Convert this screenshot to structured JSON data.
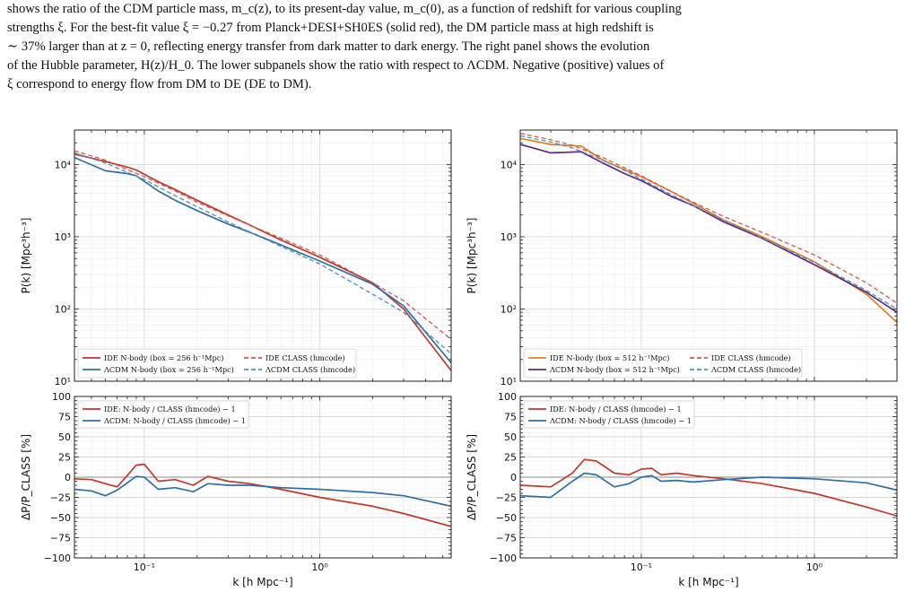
{
  "caption": {
    "line1": "shows the ratio of the CDM particle mass, m_c(z), to its present-day value, m_c(0), as a function of redshift for various coupling",
    "line2": "strengths ξ. For the best-fit value ξ = −0.27 from Planck+DESI+SH0ES (solid red), the DM particle mass at high redshift is",
    "line3": "∼ 37% larger than at z = 0, reflecting energy transfer from dark matter to dark energy. The right panel shows the evolution",
    "line4": "of the Hubble parameter, H(z)/H_0. The lower subpanels show the ratio with respect to ΛCDM. Negative (positive) values of",
    "line5": "ξ correspond to energy flow from DM to DE (DE to DM)."
  },
  "colors": {
    "ide": "#c0392b",
    "lcdm": "#2e6fa6",
    "ide_right": "#e67e22",
    "lcdm_right": "#5b2a86",
    "grid": "#dddddd"
  },
  "chart_data": [
    {
      "type": "line",
      "panel": "top-left",
      "xscale": "log",
      "yscale": "log",
      "xlim": [
        0.04,
        5.6
      ],
      "ylim": [
        10,
        30000
      ],
      "ylabel": "P(k) [Mpc³h⁻³]",
      "yticks": [
        {
          "v": 10,
          "label": "10¹"
        },
        {
          "v": 100,
          "label": "10²"
        },
        {
          "v": 1000,
          "label": "10³"
        },
        {
          "v": 10000,
          "label": "10⁴"
        }
      ],
      "legend_position": "lower-left",
      "series": [
        {
          "name": "IDE N-body (box = 256 h⁻¹Mpc)",
          "color": "#c0392b",
          "dash": "none",
          "x": [
            0.04,
            0.06,
            0.08,
            0.09,
            0.12,
            0.15,
            0.2,
            0.3,
            0.4,
            0.6,
            1,
            2,
            3,
            5.6
          ],
          "y": [
            14000,
            11000,
            9200,
            8400,
            5800,
            4500,
            3200,
            2000,
            1450,
            900,
            520,
            230,
            100,
            14
          ]
        },
        {
          "name": "ΛCDM N-body (box = 256 h⁻¹Mpc)",
          "color": "#2e6fa6",
          "dash": "none",
          "x": [
            0.04,
            0.06,
            0.08,
            0.09,
            0.12,
            0.15,
            0.2,
            0.3,
            0.4,
            0.6,
            1,
            2,
            3,
            5.6
          ],
          "y": [
            12500,
            8200,
            7500,
            7000,
            4300,
            3200,
            2300,
            1500,
            1150,
            770,
            460,
            220,
            110,
            18
          ]
        },
        {
          "name": "IDE CLASS (hmcode)",
          "color": "#d35a4a",
          "dash": "5,3",
          "x": [
            0.04,
            0.06,
            0.08,
            0.1,
            0.15,
            0.2,
            0.3,
            0.5,
            1,
            2,
            3,
            5.6
          ],
          "y": [
            15500,
            11500,
            8500,
            6800,
            4300,
            3000,
            1950,
            1150,
            560,
            230,
            130,
            38
          ]
        },
        {
          "name": "ΛCDM CLASS (hmcode)",
          "color": "#4f8fc0",
          "dash": "5,3",
          "x": [
            0.04,
            0.06,
            0.08,
            0.1,
            0.15,
            0.2,
            0.3,
            0.5,
            1,
            2,
            3,
            5.6
          ],
          "y": [
            14500,
            10500,
            7800,
            6200,
            3700,
            2600,
            1600,
            900,
            420,
            160,
            90,
            24
          ]
        }
      ]
    },
    {
      "type": "line",
      "panel": "bottom-left",
      "xscale": "log",
      "xlim": [
        0.04,
        5.6
      ],
      "ylim": [
        -100,
        100
      ],
      "xlabel": "k [h Mpc⁻¹]",
      "ylabel": "ΔP/P_CLASS [%]",
      "xticks": [
        {
          "v": 0.1,
          "label": "10⁻¹"
        },
        {
          "v": 1,
          "label": "10⁰"
        }
      ],
      "yticks": [
        {
          "v": -100,
          "label": "−100"
        },
        {
          "v": -75,
          "label": "−75"
        },
        {
          "v": -50,
          "label": "−50"
        },
        {
          "v": -25,
          "label": "−25"
        },
        {
          "v": 0,
          "label": "0"
        },
        {
          "v": 25,
          "label": "25"
        },
        {
          "v": 50,
          "label": "50"
        },
        {
          "v": 75,
          "label": "75"
        },
        {
          "v": 100,
          "label": "100"
        }
      ],
      "legend_position": "upper-left",
      "series": [
        {
          "name": "IDE: N-body / CLASS (hmcode) − 1",
          "color": "#c0392b",
          "x": [
            0.04,
            0.05,
            0.06,
            0.07,
            0.08,
            0.09,
            0.1,
            0.12,
            0.15,
            0.19,
            0.23,
            0.3,
            0.4,
            0.6,
            1,
            2,
            3,
            5.6
          ],
          "y": [
            -2,
            -3,
            -8,
            -12,
            2,
            15,
            16,
            -5,
            -3,
            -10,
            1,
            -5,
            -8,
            -15,
            -25,
            -36,
            -45,
            -61
          ]
        },
        {
          "name": "ΛCDM: N-body / CLASS (hmcode) − 1",
          "color": "#2e6fa6",
          "x": [
            0.04,
            0.05,
            0.06,
            0.07,
            0.08,
            0.09,
            0.1,
            0.12,
            0.15,
            0.19,
            0.23,
            0.3,
            0.4,
            0.6,
            1,
            2,
            3,
            5.6
          ],
          "y": [
            -15,
            -17,
            -23,
            -16,
            -7,
            1,
            0,
            -15,
            -13,
            -18,
            -8,
            -10,
            -10,
            -13,
            -15,
            -19,
            -23,
            -36
          ]
        }
      ]
    },
    {
      "type": "line",
      "panel": "top-right",
      "xscale": "log",
      "yscale": "log",
      "xlim": [
        0.02,
        3.0
      ],
      "ylim": [
        10,
        30000
      ],
      "ylabel": "P(k) [Mpc³h⁻³]",
      "yticks": [
        {
          "v": 10,
          "label": "10¹"
        },
        {
          "v": 100,
          "label": "10²"
        },
        {
          "v": 1000,
          "label": "10³"
        },
        {
          "v": 10000,
          "label": "10⁴"
        }
      ],
      "legend_position": "lower-left",
      "series": [
        {
          "name": "IDE N-body (box = 512 h⁻¹Mpc)",
          "color": "#e67e22",
          "dash": "none",
          "x": [
            0.02,
            0.03,
            0.045,
            0.06,
            0.08,
            0.1,
            0.15,
            0.2,
            0.3,
            0.5,
            1,
            2,
            3
          ],
          "y": [
            23000,
            19000,
            18000,
            11500,
            8500,
            6800,
            4200,
            2900,
            1700,
            1000,
            450,
            160,
            65
          ]
        },
        {
          "name": "ΛCDM N-body (box = 512 h⁻¹Mpc)",
          "color": "#5b2a86",
          "dash": "none",
          "x": [
            0.02,
            0.03,
            0.045,
            0.06,
            0.08,
            0.1,
            0.15,
            0.2,
            0.3,
            0.5,
            1,
            2,
            3
          ],
          "y": [
            19000,
            14500,
            15000,
            10500,
            7500,
            6000,
            3600,
            2700,
            1600,
            950,
            410,
            170,
            90
          ]
        },
        {
          "name": "IDE CLASS (hmcode)",
          "color": "#d35a4a",
          "dash": "5,3",
          "x": [
            0.02,
            0.03,
            0.04,
            0.06,
            0.08,
            0.1,
            0.15,
            0.2,
            0.3,
            0.5,
            1,
            2,
            3
          ],
          "y": [
            27000,
            22000,
            18500,
            12500,
            9000,
            7000,
            4200,
            3000,
            1900,
            1150,
            560,
            230,
            120
          ]
        },
        {
          "name": "ΛCDM CLASS (hmcode)",
          "color": "#4f8fc0",
          "dash": "5,3",
          "x": [
            0.02,
            0.03,
            0.04,
            0.06,
            0.08,
            0.1,
            0.15,
            0.2,
            0.3,
            0.5,
            1,
            2,
            3
          ],
          "y": [
            25000,
            20500,
            17000,
            11500,
            8300,
            6300,
            3800,
            2700,
            1700,
            960,
            440,
            180,
            100
          ]
        }
      ]
    },
    {
      "type": "line",
      "panel": "bottom-right",
      "xscale": "log",
      "xlim": [
        0.02,
        3.0
      ],
      "ylim": [
        -100,
        100
      ],
      "xlabel": "k [h Mpc⁻¹]",
      "ylabel": "ΔP/P_CLASS [%]",
      "xticks": [
        {
          "v": 0.1,
          "label": "10⁻¹"
        },
        {
          "v": 1,
          "label": "10⁰"
        }
      ],
      "yticks": [
        {
          "v": -100,
          "label": "−100"
        },
        {
          "v": -75,
          "label": "−75"
        },
        {
          "v": -50,
          "label": "−50"
        },
        {
          "v": -25,
          "label": "−25"
        },
        {
          "v": 0,
          "label": "0"
        },
        {
          "v": 25,
          "label": "25"
        },
        {
          "v": 50,
          "label": "50"
        },
        {
          "v": 75,
          "label": "75"
        },
        {
          "v": 100,
          "label": "100"
        }
      ],
      "legend_position": "upper-left",
      "series": [
        {
          "name": "IDE: N-body / CLASS (hmcode) − 1",
          "color": "#c0392b",
          "x": [
            0.02,
            0.03,
            0.04,
            0.047,
            0.055,
            0.07,
            0.085,
            0.1,
            0.115,
            0.13,
            0.16,
            0.2,
            0.3,
            0.5,
            1,
            2,
            3
          ],
          "y": [
            -10,
            -12,
            5,
            22,
            20,
            5,
            3,
            10,
            11,
            3,
            5,
            2,
            -2,
            -8,
            -20,
            -37,
            -48
          ]
        },
        {
          "name": "ΛCDM: N-body / CLASS (hmcode) − 1",
          "color": "#2e6fa6",
          "x": [
            0.02,
            0.03,
            0.04,
            0.047,
            0.055,
            0.07,
            0.085,
            0.1,
            0.115,
            0.13,
            0.16,
            0.2,
            0.3,
            0.5,
            1,
            2,
            3
          ],
          "y": [
            -23,
            -25,
            -5,
            5,
            3,
            -12,
            -8,
            0,
            2,
            -5,
            -4,
            -6,
            -3,
            0,
            -2,
            -7,
            -16
          ]
        }
      ]
    }
  ]
}
